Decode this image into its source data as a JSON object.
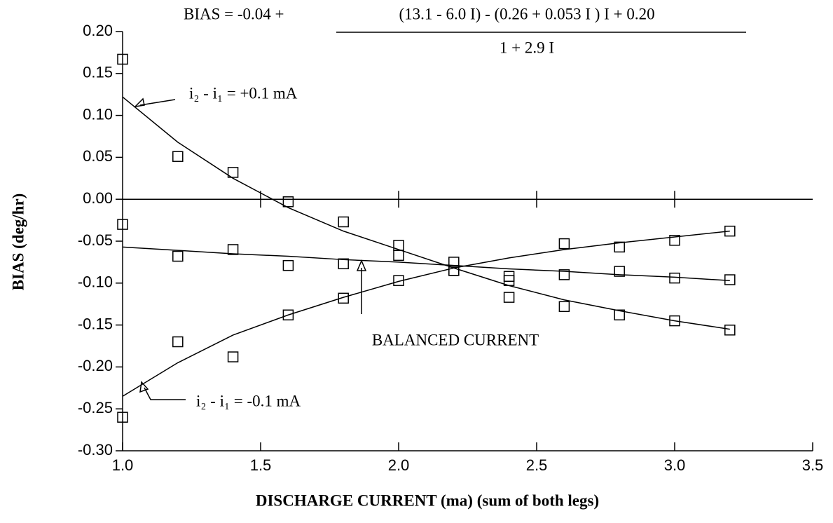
{
  "chart_data": {
    "type": "scatter",
    "formula": {
      "lhs": "BIAS  =  -0.04  +",
      "numerator": "(13.1  -  6.0 I)  -  (0.26  +  0.053 I ) I  +  0.20",
      "denominator": "1  +  2.9 I"
    },
    "xlabel": "DISCHARGE CURRENT  (ma)   (sum of both legs)",
    "ylabel": "BIAS  (deg/hr)",
    "annotations": [
      "i₂ -  i₁   =   +0.1 mA",
      "BALANCED  CURRENT",
      "i₂ -  i₁   =   -0.1 mA"
    ],
    "x": [
      1.0,
      1.2,
      1.4,
      1.6,
      1.8,
      2.0,
      2.2,
      2.4,
      2.6,
      2.8,
      3.0,
      3.2
    ],
    "series": [
      {
        "style": "markers",
        "color": "#000000",
        "values": [
          0.167,
          0.051,
          0.032,
          -0.003,
          -0.027,
          -0.055,
          -0.085,
          -0.117,
          -0.128,
          -0.138,
          -0.145,
          -0.156
        ]
      },
      {
        "style": "markers",
        "color": "#000000",
        "values": [
          -0.03,
          -0.068,
          -0.06,
          -0.079,
          -0.077,
          -0.067,
          -0.085,
          -0.092,
          -0.09,
          -0.086,
          -0.094,
          -0.096
        ]
      },
      {
        "style": "markers",
        "color": "#000000",
        "values": [
          -0.26,
          -0.17,
          -0.188,
          -0.138,
          -0.118,
          -0.097,
          -0.075,
          -0.097,
          -0.053,
          -0.057,
          -0.049,
          -0.038
        ]
      },
      {
        "style": "line",
        "color": "#000000",
        "values": [
          0.122,
          0.068,
          0.025,
          -0.01,
          -0.038,
          -0.06,
          -0.082,
          -0.103,
          -0.12,
          -0.133,
          -0.145,
          -0.155
        ]
      },
      {
        "style": "line",
        "color": "#000000",
        "values": [
          -0.057,
          -0.061,
          -0.065,
          -0.068,
          -0.072,
          -0.075,
          -0.079,
          -0.083,
          -0.086,
          -0.09,
          -0.093,
          -0.097
        ]
      },
      {
        "style": "line",
        "color": "#000000",
        "values": [
          -0.235,
          -0.195,
          -0.162,
          -0.138,
          -0.117,
          -0.098,
          -0.082,
          -0.07,
          -0.06,
          -0.052,
          -0.045,
          -0.038
        ]
      }
    ],
    "xlim": [
      1.0,
      3.5
    ],
    "ylim": [
      -0.3,
      0.2
    ],
    "xticks": [
      {
        "value": 1.0,
        "label": "1.0"
      },
      1.5,
      {
        "value": 2.0,
        "label": "2.0"
      },
      2.5,
      {
        "value": 3.0,
        "label": "3.0"
      },
      3.5
    ],
    "yticks": [
      {
        "value": 0.2,
        "label": "0.20"
      },
      0.15,
      {
        "value": 0.1,
        "label": "0.10"
      },
      0.05,
      {
        "value": 0,
        "label": "0.00"
      },
      -0.05,
      {
        "value": -0.1,
        "label": "-0.10"
      },
      -0.15,
      {
        "value": -0.2,
        "label": "-0.20"
      },
      -0.25,
      {
        "value": -0.3,
        "label": "-0.30"
      }
    ],
    "zero_line": true
  }
}
